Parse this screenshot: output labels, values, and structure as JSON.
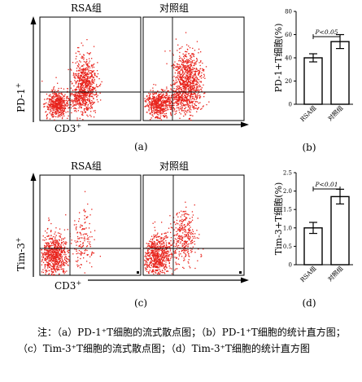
{
  "panel_a": {
    "letter": "(a)",
    "group_labels": [
      "RSA组",
      "对照组"
    ],
    "y_marker": "PD-1",
    "y_marker_sup": "+",
    "x_marker": "CD3",
    "x_marker_sup": "+"
  },
  "panel_c": {
    "letter": "(c)",
    "group_labels": [
      "RSA组",
      "对照组"
    ],
    "y_marker": "Tim-3",
    "y_marker_sup": "+",
    "x_marker": "CD3",
    "x_marker_sup": "+"
  },
  "colors": {
    "dots": "#e8231c",
    "ink": "#000000"
  },
  "chart_data": [
    {
      "type": "bar",
      "panel": "(b)",
      "categories": [
        "RSA组",
        "对照组"
      ],
      "values": [
        40,
        54
      ],
      "errors": [
        3.5,
        6
      ],
      "ylabel": "PD-1+T细胞(%)",
      "ylim": [
        0,
        80
      ],
      "yticks": [
        "0",
        "20",
        "40",
        "60",
        "80"
      ],
      "significance": "P<0.05"
    },
    {
      "type": "bar",
      "panel": "(d)",
      "categories": [
        "RSA组",
        "对照组"
      ],
      "values": [
        1.0,
        1.85
      ],
      "errors": [
        0.15,
        0.2
      ],
      "ylabel": "Tim-3+T细胞(%)",
      "ylim": [
        0,
        2.5
      ],
      "yticks": [
        "0",
        "0.5",
        "1.0",
        "1.5",
        "2.0",
        "2.5"
      ],
      "significance": "P<0.01"
    }
  ],
  "caption": {
    "prefix": "注：",
    "a": "（a）PD-1⁺T细胞的流式散点图；",
    "b": "（b）PD-1⁺T细胞的统计直方图；",
    "c": "（c）Tim-3⁺T细胞的流式散点图；",
    "d": "（d）Tim-3⁺T细胞的统计直方图"
  }
}
